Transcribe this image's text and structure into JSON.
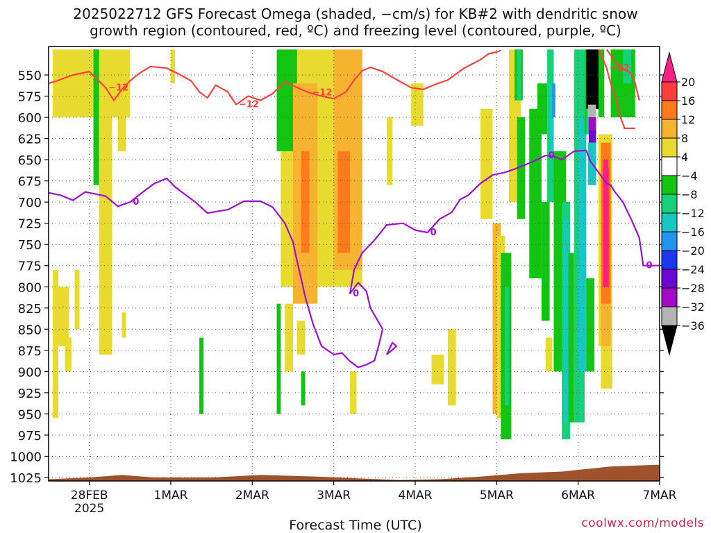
{
  "title_line1": "2025022712 GFS Forecast Omega (shaded, −cm/s) for KB#2 with dendritic snow",
  "title_line2": "growth region (contoured, red, ºC) and freezing level (contoured, purple, ºC)",
  "x_axis_title": "Forecast Time (UTC)",
  "credit": "coolwx.com/models",
  "chart_data": {
    "type": "heatmap",
    "x_ticks": [
      {
        "label": "28FEB",
        "sub": "2025",
        "day": 0.5
      },
      {
        "label": "1MAR",
        "day": 1.5
      },
      {
        "label": "2MAR",
        "day": 2.5
      },
      {
        "label": "3MAR",
        "day": 3.5
      },
      {
        "label": "4MAR",
        "day": 4.5
      },
      {
        "label": "5MAR",
        "day": 5.5
      },
      {
        "label": "6MAR",
        "day": 6.5
      },
      {
        "label": "7MAR",
        "day": 7.5
      }
    ],
    "xlim": [
      0,
      7.5
    ],
    "y_ticks": [
      550,
      575,
      600,
      625,
      650,
      675,
      700,
      725,
      750,
      775,
      800,
      825,
      850,
      875,
      900,
      925,
      950,
      975,
      1000,
      1025
    ],
    "ylim": [
      520,
      1030
    ],
    "y_axis_inverted": true,
    "grid": true,
    "colorbar": {
      "labels": [
        "20",
        "16",
        "12",
        "8",
        "4",
        "−4",
        "−8",
        "−12",
        "−16",
        "−20",
        "−24",
        "−28",
        "−32",
        "−36"
      ],
      "colors": [
        "#ff1f8a",
        "#ff3b3b",
        "#ff7a1a",
        "#f5b330",
        "#e8da2e",
        "#ffffff",
        "#12c512",
        "#14d17a",
        "#17c7c4",
        "#1f95f0",
        "#1c37f0",
        "#6a08d0",
        "#a20ac8",
        "#b4b4b4",
        "#000000"
      ],
      "position": "right"
    },
    "contours": [
      {
        "color": "#ff4040",
        "label": "−12",
        "points": [
          [
            0,
            560
          ],
          [
            0.1,
            557
          ],
          [
            0.3,
            550
          ],
          [
            0.5,
            546
          ],
          [
            0.7,
            565
          ],
          [
            0.8,
            580
          ],
          [
            0.9,
            567
          ],
          [
            1.0,
            557
          ],
          [
            1.1,
            549
          ],
          [
            1.25,
            540
          ],
          [
            1.45,
            542
          ],
          [
            1.6,
            549
          ],
          [
            1.75,
            557
          ],
          [
            1.85,
            570
          ],
          [
            1.95,
            577
          ],
          [
            2.05,
            562
          ],
          [
            2.2,
            570
          ],
          [
            2.3,
            585
          ],
          [
            2.45,
            575
          ],
          [
            2.6,
            580
          ],
          [
            2.75,
            572
          ],
          [
            2.9,
            558
          ],
          [
            3.05,
            565
          ],
          [
            3.2,
            571
          ],
          [
            3.35,
            575
          ],
          [
            3.5,
            578
          ],
          [
            3.65,
            570
          ],
          [
            3.75,
            556
          ],
          [
            3.85,
            545
          ],
          [
            3.95,
            541
          ],
          [
            4.1,
            546
          ],
          [
            4.3,
            557
          ],
          [
            4.45,
            565
          ],
          [
            4.6,
            567
          ],
          [
            4.75,
            561
          ],
          [
            4.9,
            556
          ],
          [
            5.1,
            542
          ],
          [
            5.3,
            532
          ],
          [
            5.4,
            525
          ],
          [
            5.5,
            523
          ],
          [
            5.55,
            521
          ]
        ]
      },
      {
        "color": "#ff4040",
        "label": "−12",
        "points": [
          [
            6.75,
            520
          ],
          [
            6.8,
            530
          ],
          [
            6.85,
            542
          ],
          [
            6.9,
            560
          ],
          [
            6.98,
            583
          ],
          [
            7.02,
            600
          ],
          [
            7.07,
            613
          ],
          [
            7.2,
            613
          ]
        ]
      },
      {
        "color": "#ff4040",
        "label": "",
        "points": [
          [
            6.85,
            520
          ],
          [
            7.0,
            540
          ],
          [
            7.15,
            548
          ],
          [
            7.2,
            560
          ],
          [
            7.25,
            580
          ]
        ]
      },
      {
        "color": "#a010d0",
        "label": "0",
        "points": [
          [
            0,
            689
          ],
          [
            0.15,
            692
          ],
          [
            0.3,
            698
          ],
          [
            0.45,
            688
          ],
          [
            0.55,
            690
          ],
          [
            0.7,
            693
          ],
          [
            0.85,
            705
          ],
          [
            1.0,
            700
          ],
          [
            1.2,
            685
          ],
          [
            1.3,
            678
          ],
          [
            1.45,
            672
          ],
          [
            1.55,
            682
          ],
          [
            1.8,
            700
          ],
          [
            1.95,
            713
          ],
          [
            2.2,
            709
          ],
          [
            2.4,
            699
          ],
          [
            2.6,
            699
          ],
          [
            2.75,
            706
          ],
          [
            2.9,
            725
          ],
          [
            3.0,
            747
          ],
          [
            3.05,
            770
          ],
          [
            3.1,
            790
          ],
          [
            3.15,
            812
          ],
          [
            3.25,
            845
          ],
          [
            3.35,
            870
          ],
          [
            3.5,
            880
          ],
          [
            3.6,
            878
          ],
          [
            3.7,
            888
          ],
          [
            3.8,
            895
          ],
          [
            3.9,
            892
          ],
          [
            4.0,
            887
          ],
          [
            4.05,
            870
          ],
          [
            4.1,
            850
          ],
          [
            3.95,
            825
          ],
          [
            3.9,
            805
          ],
          [
            3.8,
            795
          ],
          [
            3.7,
            808
          ],
          [
            3.75,
            780
          ],
          [
            3.85,
            760
          ],
          [
            4.0,
            745
          ],
          [
            4.15,
            727
          ],
          [
            4.35,
            725
          ],
          [
            4.5,
            733
          ],
          [
            4.65,
            736
          ],
          [
            4.8,
            720
          ],
          [
            4.95,
            712
          ],
          [
            5.05,
            697
          ],
          [
            5.15,
            692
          ],
          [
            5.3,
            678
          ],
          [
            5.45,
            668
          ],
          [
            5.6,
            665
          ],
          [
            5.75,
            660
          ],
          [
            5.95,
            652
          ],
          [
            6.1,
            645
          ],
          [
            6.2,
            646
          ],
          [
            6.3,
            650
          ],
          [
            6.45,
            640
          ],
          [
            6.6,
            639
          ],
          [
            6.65,
            652
          ],
          [
            6.75,
            665
          ],
          [
            6.85,
            678
          ],
          [
            6.9,
            680
          ],
          [
            6.95,
            688
          ],
          [
            7.05,
            700
          ],
          [
            7.15,
            720
          ],
          [
            7.25,
            742
          ],
          [
            7.3,
            775
          ],
          [
            7.5,
            775
          ]
        ]
      }
    ],
    "terrain": {
      "color": "#a0522d"
    }
  }
}
